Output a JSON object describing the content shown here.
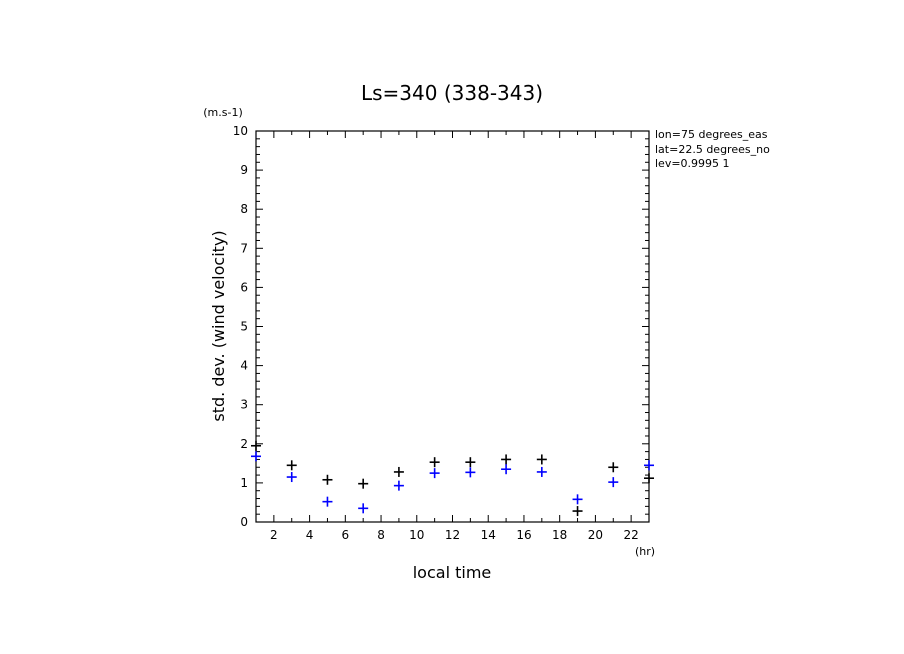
{
  "chart_data": {
    "type": "scatter",
    "title": "Ls=340 (338-343)",
    "xlabel": "local time",
    "ylabel": "std. dev. (wind velocity)",
    "x_unit": "(hr)",
    "y_unit": "(m.s-1)",
    "xlim": [
      1,
      23
    ],
    "ylim": [
      0,
      10
    ],
    "x_ticks": [
      2,
      4,
      6,
      8,
      10,
      12,
      14,
      16,
      18,
      20,
      22
    ],
    "y_ticks": [
      0,
      1,
      2,
      3,
      4,
      5,
      6,
      7,
      8,
      9,
      10
    ],
    "marker": "+",
    "grid": false,
    "series": [
      {
        "color": "#000000",
        "x": [
          1,
          3,
          5,
          7,
          9,
          11,
          13,
          15,
          17,
          19,
          21,
          23
        ],
        "y": [
          1.95,
          1.45,
          1.08,
          0.98,
          1.28,
          1.53,
          1.53,
          1.6,
          1.6,
          0.28,
          1.4,
          1.12
        ]
      },
      {
        "color": "#0000ff",
        "x": [
          1,
          3,
          5,
          7,
          9,
          11,
          13,
          15,
          17,
          19,
          21,
          23
        ],
        "y": [
          1.68,
          1.15,
          0.52,
          0.35,
          0.93,
          1.25,
          1.27,
          1.35,
          1.28,
          0.58,
          1.02,
          1.45
        ]
      }
    ]
  },
  "info": {
    "lines": [
      "lon=75 degrees_eas",
      "lat=22.5 degrees_no",
      "lev=0.9995 1"
    ]
  }
}
